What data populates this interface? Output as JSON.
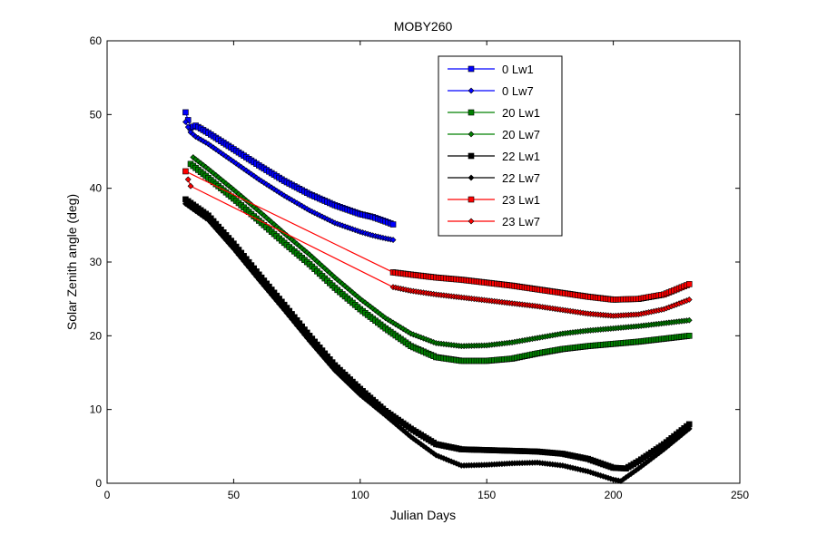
{
  "chart_data": {
    "type": "line",
    "title": "MOBY260",
    "xlabel": "Julian Days",
    "ylabel": "Solar Zenith angle (deg)",
    "xlim": [
      0,
      250
    ],
    "ylim": [
      0,
      60
    ],
    "xticks": [
      0,
      50,
      100,
      150,
      200,
      250
    ],
    "yticks": [
      0,
      10,
      20,
      30,
      40,
      50,
      60
    ],
    "grid": false,
    "legend_position": "top-center",
    "series": [
      {
        "name": "0 Lw1",
        "color": "#0000ff",
        "marker": "square",
        "points": [
          [
            31,
            50.3
          ],
          [
            33,
            48.2
          ],
          [
            35,
            48.5
          ],
          [
            40,
            47.5
          ],
          [
            50,
            45.3
          ],
          [
            60,
            43.1
          ],
          [
            70,
            41.0
          ],
          [
            80,
            39.2
          ],
          [
            90,
            37.7
          ],
          [
            100,
            36.5
          ],
          [
            105,
            36.1
          ],
          [
            110,
            35.5
          ],
          [
            113,
            35.1
          ]
        ]
      },
      {
        "name": "0 Lw7",
        "color": "#0000ff",
        "marker": "diamond",
        "points": [
          [
            31,
            49.0
          ],
          [
            33,
            47.6
          ],
          [
            35,
            47.0
          ],
          [
            40,
            46.0
          ],
          [
            50,
            43.6
          ],
          [
            60,
            41.2
          ],
          [
            70,
            39.0
          ],
          [
            80,
            37.0
          ],
          [
            90,
            35.3
          ],
          [
            100,
            34.1
          ],
          [
            105,
            33.6
          ],
          [
            110,
            33.2
          ],
          [
            113,
            33.0
          ]
        ]
      },
      {
        "name": "20 Lw1",
        "color": "#008000",
        "marker": "square",
        "points": [
          [
            33,
            43.3
          ],
          [
            40,
            41.4
          ],
          [
            50,
            38.6
          ],
          [
            60,
            35.6
          ],
          [
            70,
            32.6
          ],
          [
            80,
            29.7
          ],
          [
            90,
            26.5
          ],
          [
            100,
            23.6
          ],
          [
            110,
            21.0
          ],
          [
            120,
            18.6
          ],
          [
            130,
            17.1
          ],
          [
            140,
            16.6
          ],
          [
            150,
            16.6
          ],
          [
            160,
            16.9
          ],
          [
            170,
            17.6
          ],
          [
            180,
            18.2
          ],
          [
            190,
            18.6
          ],
          [
            200,
            18.9
          ],
          [
            210,
            19.2
          ],
          [
            220,
            19.6
          ],
          [
            230,
            20.0
          ]
        ]
      },
      {
        "name": "20 Lw7",
        "color": "#008000",
        "marker": "diamond",
        "points": [
          [
            34,
            44.2
          ],
          [
            40,
            42.6
          ],
          [
            50,
            39.8
          ],
          [
            60,
            36.9
          ],
          [
            70,
            33.9
          ],
          [
            80,
            31.0
          ],
          [
            90,
            27.9
          ],
          [
            100,
            25.0
          ],
          [
            110,
            22.4
          ],
          [
            120,
            20.3
          ],
          [
            130,
            19.0
          ],
          [
            140,
            18.6
          ],
          [
            150,
            18.7
          ],
          [
            160,
            19.1
          ],
          [
            170,
            19.7
          ],
          [
            180,
            20.3
          ],
          [
            190,
            20.7
          ],
          [
            200,
            21.0
          ],
          [
            210,
            21.3
          ],
          [
            220,
            21.7
          ],
          [
            230,
            22.1
          ]
        ]
      },
      {
        "name": "22 Lw1",
        "color": "#000000",
        "marker": "square",
        "points": [
          [
            31,
            38.5
          ],
          [
            40,
            36.3
          ],
          [
            50,
            32.5
          ],
          [
            60,
            28.3
          ],
          [
            70,
            24.2
          ],
          [
            80,
            20.0
          ],
          [
            90,
            16.0
          ],
          [
            100,
            12.8
          ],
          [
            110,
            9.8
          ],
          [
            120,
            7.4
          ],
          [
            130,
            5.3
          ],
          [
            140,
            4.6
          ],
          [
            150,
            4.5
          ],
          [
            160,
            4.4
          ],
          [
            170,
            4.3
          ],
          [
            180,
            4.0
          ],
          [
            190,
            3.3
          ],
          [
            200,
            2.1
          ],
          [
            205,
            2.0
          ],
          [
            210,
            3.0
          ],
          [
            220,
            5.3
          ],
          [
            230,
            8.0
          ]
        ]
      },
      {
        "name": "22 Lw7",
        "color": "#000000",
        "marker": "diamond",
        "points": [
          [
            31,
            37.9
          ],
          [
            40,
            35.7
          ],
          [
            50,
            31.8
          ],
          [
            60,
            27.6
          ],
          [
            70,
            23.5
          ],
          [
            80,
            19.3
          ],
          [
            90,
            15.3
          ],
          [
            100,
            12.0
          ],
          [
            110,
            9.2
          ],
          [
            120,
            6.3
          ],
          [
            130,
            3.8
          ],
          [
            140,
            2.4
          ],
          [
            150,
            2.5
          ],
          [
            160,
            2.7
          ],
          [
            170,
            2.8
          ],
          [
            180,
            2.4
          ],
          [
            190,
            1.6
          ],
          [
            200,
            0.5
          ],
          [
            203,
            0.3
          ],
          [
            210,
            2.0
          ],
          [
            220,
            4.6
          ],
          [
            230,
            7.4
          ]
        ]
      },
      {
        "name": "23 Lw1",
        "color": "#ff0000",
        "marker": "square",
        "points": [
          [
            31,
            42.3
          ],
          [
            113,
            28.6
          ],
          [
            120,
            28.3
          ],
          [
            130,
            27.9
          ],
          [
            140,
            27.6
          ],
          [
            150,
            27.2
          ],
          [
            160,
            26.8
          ],
          [
            170,
            26.3
          ],
          [
            180,
            25.8
          ],
          [
            190,
            25.3
          ],
          [
            200,
            24.9
          ],
          [
            210,
            25.0
          ],
          [
            220,
            25.6
          ],
          [
            230,
            27.0
          ]
        ]
      },
      {
        "name": "23 Lw7",
        "color": "#ff0000",
        "marker": "diamond",
        "points": [
          [
            32,
            41.2
          ],
          [
            33,
            40.3
          ],
          [
            113,
            26.6
          ],
          [
            120,
            26.1
          ],
          [
            130,
            25.6
          ],
          [
            140,
            25.2
          ],
          [
            150,
            24.8
          ],
          [
            160,
            24.4
          ],
          [
            170,
            24.0
          ],
          [
            180,
            23.5
          ],
          [
            190,
            23.0
          ],
          [
            200,
            22.7
          ],
          [
            210,
            22.9
          ],
          [
            220,
            23.6
          ],
          [
            230,
            24.9
          ]
        ]
      }
    ]
  }
}
